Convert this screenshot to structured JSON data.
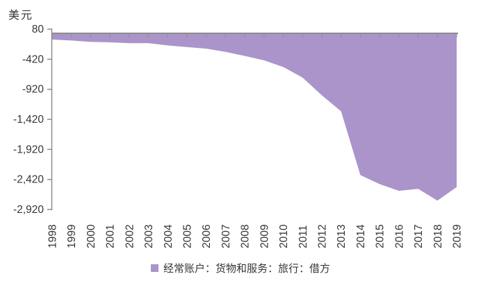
{
  "title": "美元",
  "legend": {
    "label": "经常账户：货物和服务：旅行：借方",
    "marker_color": "#aa94ca"
  },
  "chart_data": {
    "type": "area",
    "title": "美元",
    "unit_label": "美元",
    "x": [
      1998,
      1999,
      2000,
      2001,
      2002,
      2003,
      2004,
      2005,
      2006,
      2007,
      2008,
      2009,
      2010,
      2011,
      2012,
      2013,
      2014,
      2015,
      2016,
      2017,
      2018,
      2019
    ],
    "series": [
      {
        "name": "经常账户：货物和服务：旅行：借方",
        "values": [
          -92,
          -109,
          -131,
          -139,
          -154,
          -152,
          -191,
          -218,
          -243,
          -298,
          -365,
          -439,
          -549,
          -726,
          -1020,
          -1287,
          -2348,
          -2498,
          -2610,
          -2577,
          -2773,
          -2546
        ]
      }
    ],
    "ylim": [
      -2920,
      80
    ],
    "ytick_values": [
      80,
      -420,
      -920,
      -1420,
      -1920,
      -2420,
      -2920
    ],
    "ytick_labels": [
      "80",
      "-420",
      "-920",
      "-1,420",
      "-1,920",
      "-2,420",
      "-2,920"
    ],
    "baseline": 0,
    "grid": false,
    "legend_position": "bottom",
    "fill_color": "#aa94ca",
    "axis_color": "#8c8c8c",
    "text_color": "#353535"
  }
}
